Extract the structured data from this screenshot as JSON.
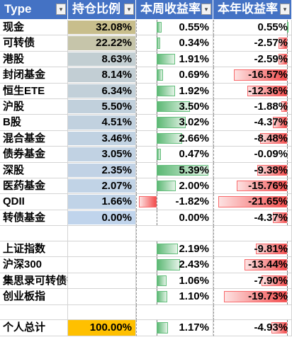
{
  "headers": [
    "Type",
    "持仓比例",
    "本周收益率",
    "本年收益率"
  ],
  "colors": {
    "header_bg": "#4472c4",
    "holding_low": "#c0d4ec",
    "holding_high": "#c8be8c",
    "total_highlight": "#ffc000",
    "gain_bar": "#63be7b",
    "loss_bar": "#f8696b"
  },
  "holdings": [
    {
      "name": "现金",
      "holding": "32.08%",
      "holding_value": 32.08,
      "week": "0.55%",
      "week_value": 0.55,
      "year": "0.55%",
      "year_value": 0.55
    },
    {
      "name": "可转债",
      "holding": "22.22%",
      "holding_value": 22.22,
      "week": "0.34%",
      "week_value": 0.34,
      "year": "-2.57%",
      "year_value": -2.57
    },
    {
      "name": "港股",
      "holding": "8.63%",
      "holding_value": 8.63,
      "week": "1.91%",
      "week_value": 1.91,
      "year": "-2.59%",
      "year_value": -2.59
    },
    {
      "name": "封闭基金",
      "holding": "8.14%",
      "holding_value": 8.14,
      "week": "0.69%",
      "week_value": 0.69,
      "year": "-16.57%",
      "year_value": -16.57
    },
    {
      "name": "恒生ETE",
      "holding": "6.34%",
      "holding_value": 6.34,
      "week": "1.92%",
      "week_value": 1.92,
      "year": "-12.36%",
      "year_value": -12.36
    },
    {
      "name": "沪股",
      "holding": "5.50%",
      "holding_value": 5.5,
      "week": "3.50%",
      "week_value": 3.5,
      "year": "-1.88%",
      "year_value": -1.88
    },
    {
      "name": "B股",
      "holding": "4.51%",
      "holding_value": 4.51,
      "week": "3.02%",
      "week_value": 3.02,
      "year": "-4.37%",
      "year_value": -4.37
    },
    {
      "name": "混合基金",
      "holding": "3.46%",
      "holding_value": 3.46,
      "week": "2.66%",
      "week_value": 2.66,
      "year": "-8.48%",
      "year_value": -8.48
    },
    {
      "name": "债券基金",
      "holding": "3.05%",
      "holding_value": 3.05,
      "week": "0.47%",
      "week_value": 0.47,
      "year": "-0.09%",
      "year_value": -0.09
    },
    {
      "name": "深股",
      "holding": "2.35%",
      "holding_value": 2.35,
      "week": "5.39%",
      "week_value": 5.39,
      "year": "-9.38%",
      "year_value": -9.38
    },
    {
      "name": "医药基金",
      "holding": "2.07%",
      "holding_value": 2.07,
      "week": "2.00%",
      "week_value": 2.0,
      "year": "-15.76%",
      "year_value": -15.76
    },
    {
      "name": "QDII",
      "holding": "1.66%",
      "holding_value": 1.66,
      "week": "-1.82%",
      "week_value": -1.82,
      "year": "-21.65%",
      "year_value": -21.65
    },
    {
      "name": "转债基金",
      "holding": "0.00%",
      "holding_value": 0.0,
      "week": "0.00%",
      "week_value": 0.0,
      "year": "-4.37%",
      "year_value": -4.37
    }
  ],
  "indices": [
    {
      "name": "上证指数",
      "week": "2.19%",
      "week_value": 2.19,
      "year": "-9.81%",
      "year_value": -9.81
    },
    {
      "name": "沪深300",
      "week": "2.43%",
      "week_value": 2.43,
      "year": "-13.44%",
      "year_value": -13.44
    },
    {
      "name": "集思录可转债等权",
      "week": "1.06%",
      "week_value": 1.06,
      "year": "-7.90%",
      "year_value": -7.9
    },
    {
      "name": "创业板指",
      "week": "1.10%",
      "week_value": 1.1,
      "year": "-19.73%",
      "year_value": -19.73
    }
  ],
  "total": {
    "name": "个人总计",
    "holding": "100.00%",
    "week": "1.17%",
    "week_value": 1.17,
    "year": "-4.93%",
    "year_value": -4.93
  }
}
